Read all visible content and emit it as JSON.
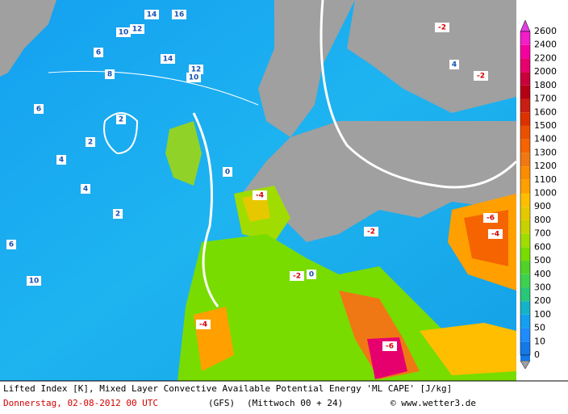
{
  "colorbar": {
    "levels": [
      2600,
      2400,
      2200,
      2000,
      1800,
      1700,
      1600,
      1500,
      1400,
      1300,
      1200,
      1100,
      1000,
      900,
      800,
      700,
      600,
      500,
      400,
      300,
      200,
      100,
      50,
      10,
      0
    ],
    "colors": [
      "#e23de0",
      "#f21ec8",
      "#f500a0",
      "#e6006e",
      "#c8003c",
      "#b40014",
      "#c81e14",
      "#dc3200",
      "#eb5000",
      "#f56400",
      "#f07814",
      "#fa8c00",
      "#ffa000",
      "#ffbe00",
      "#e6c800",
      "#c8d200",
      "#a0dc00",
      "#78dc00",
      "#50d228",
      "#3cd250",
      "#28c878",
      "#14b4c8",
      "#14a0f0",
      "#1e8cff",
      "#1478e6"
    ]
  },
  "contour_labels": [
    "14",
    "16",
    "10",
    "12",
    "6",
    "14",
    "12",
    "10",
    "8",
    "6",
    "2",
    "2",
    "4",
    "4",
    "2",
    "6",
    "10",
    "-2",
    "-2",
    "-6",
    "-4",
    "-4",
    "-2",
    "-6",
    "-4",
    "0",
    "0",
    "4",
    "-2"
  ],
  "footer": {
    "description": "Lifted Index [K], Mixed Layer Convective Available Potential Energy 'ML CAPE' [J/kg]",
    "date": "Donnerstag, 02-08-2012  00 UTC",
    "model": "(GFS)",
    "run": "(Mittwoch 00 + 24)",
    "credit": "© www.wetter3.de"
  }
}
